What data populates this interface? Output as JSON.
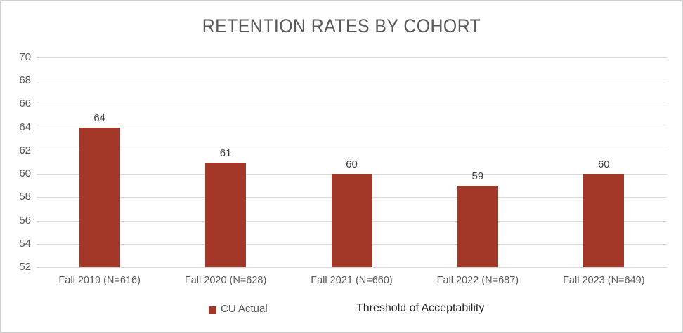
{
  "title": "RETENTION RATES BY COHORT",
  "colors": {
    "bar": "#A33728",
    "gridline": "#D9D9D9",
    "axis_text": "#595959",
    "title_text": "#595959",
    "data_label": "#404040",
    "threshold_text": "#1F1F1F",
    "frame_border": "#CFCFCF"
  },
  "chart_data": {
    "type": "bar",
    "title": "RETENTION RATES BY COHORT",
    "categories": [
      "Fall 2019 (N=616)",
      "Fall 2020 (N=628)",
      "Fall 2021 (N=660)",
      "Fall 2022 (N=687)",
      "Fall 2023 (N=649)"
    ],
    "series": [
      {
        "name": "CU Actual",
        "values": [
          64,
          61,
          60,
          59,
          60
        ]
      }
    ],
    "data_labels": [
      "64",
      "61",
      "60",
      "59",
      "60"
    ],
    "xlabel": "",
    "ylabel": "",
    "ylim": [
      52,
      70
    ],
    "yticks": [
      52,
      54,
      56,
      58,
      60,
      62,
      64,
      66,
      68,
      70
    ],
    "grid": true,
    "legend_position": "bottom"
  },
  "legend": {
    "cu_actual_label": "CU Actual",
    "threshold_label": "Threshold of Acceptability"
  }
}
